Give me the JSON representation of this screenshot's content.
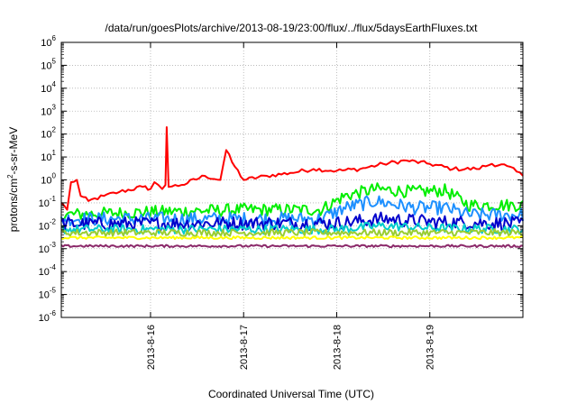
{
  "chart_data": {
    "type": "line",
    "title": "/data/run/goesPlots/archive/2013-08-19/23:00/flux/../flux/5daysEarthFluxes.txt",
    "xlabel": "Coordinated Universal Time (UTC)",
    "ylabel": "protons/cm2-s-sr-MeV",
    "ylabel_parts": [
      "protons/cm",
      "2",
      "-s-sr-MeV"
    ],
    "y_scale": "log",
    "ylim": [
      1e-06,
      1000000.0
    ],
    "y_ticks": [
      {
        "value": 1e-06,
        "base": "10",
        "exp": "-6"
      },
      {
        "value": 1e-05,
        "base": "10",
        "exp": "-5"
      },
      {
        "value": 0.0001,
        "base": "10",
        "exp": "-4"
      },
      {
        "value": 0.001,
        "base": "10",
        "exp": "-3"
      },
      {
        "value": 0.01,
        "base": "10",
        "exp": "-2"
      },
      {
        "value": 0.1,
        "base": "10",
        "exp": "-1"
      },
      {
        "value": 1,
        "base": "10",
        "exp": "0"
      },
      {
        "value": 10.0,
        "base": "10",
        "exp": "1"
      },
      {
        "value": 100.0,
        "base": "10",
        "exp": "2"
      },
      {
        "value": 1000.0,
        "base": "10",
        "exp": "3"
      },
      {
        "value": 10000.0,
        "base": "10",
        "exp": "4"
      },
      {
        "value": 100000.0,
        "base": "10",
        "exp": "5"
      },
      {
        "value": 1000000.0,
        "base": "10",
        "exp": "6"
      }
    ],
    "x_unit": "days",
    "xlim": [
      "2013-08-15T01:00",
      "2013-08-20T00:00"
    ],
    "x_ticks": [
      {
        "value": "2013-08-16",
        "label": "2013-8-16"
      },
      {
        "value": "2013-08-17",
        "label": "2013-8-17"
      },
      {
        "value": "2013-08-18",
        "label": "2013-8-18"
      },
      {
        "value": "2013-08-19",
        "label": "2013-8-19"
      }
    ],
    "grid": true,
    "legend": "none",
    "series": [
      {
        "color": "#ff0000",
        "kind": "anchors",
        "noise": 0.18,
        "points": [
          [
            "2013-08-15T01:00",
            0.1
          ],
          [
            "2013-08-15T02:30",
            0.05
          ],
          [
            "2013-08-15T03:30",
            0.8
          ],
          [
            "2013-08-15T05:00",
            1.0
          ],
          [
            "2013-08-15T06:00",
            0.2
          ],
          [
            "2013-08-15T08:00",
            0.12
          ],
          [
            "2013-08-15T12:00",
            0.2
          ],
          [
            "2013-08-15T16:00",
            0.3
          ],
          [
            "2013-08-15T22:00",
            0.5
          ],
          [
            "2013-08-16T00:00",
            0.4
          ],
          [
            "2013-08-16T01:00",
            0.8
          ],
          [
            "2013-08-16T02:00",
            0.6
          ],
          [
            "2013-08-16T03:00",
            0.4
          ],
          [
            "2013-08-16T03:50",
            0.6
          ],
          [
            "2013-08-16T04:10",
            200
          ],
          [
            "2013-08-16T04:40",
            0.5
          ],
          [
            "2013-08-16T08:00",
            0.6
          ],
          [
            "2013-08-16T14:00",
            1.5
          ],
          [
            "2013-08-16T18:00",
            1.0
          ],
          [
            "2013-08-16T19:30",
            20
          ],
          [
            "2013-08-16T21:00",
            6
          ],
          [
            "2013-08-17T00:00",
            1.0
          ],
          [
            "2013-08-17T06:00",
            1.5
          ],
          [
            "2013-08-17T12:00",
            2.0
          ],
          [
            "2013-08-17T18:00",
            3.0
          ],
          [
            "2013-08-18T00:00",
            2.5
          ],
          [
            "2013-08-18T06:00",
            3.0
          ],
          [
            "2013-08-18T12:00",
            5.0
          ],
          [
            "2013-08-18T18:00",
            7.0
          ],
          [
            "2013-08-19T00:00",
            5.0
          ],
          [
            "2013-08-19T06:00",
            3.0
          ],
          [
            "2013-08-19T12:00",
            3.0
          ],
          [
            "2013-08-19T16:00",
            5.0
          ],
          [
            "2013-08-19T20:00",
            4.0
          ],
          [
            "2013-08-20T00:00",
            1.5
          ]
        ]
      },
      {
        "color": "#00ee00",
        "kind": "noisy",
        "noise": 0.55,
        "points": [
          [
            "2013-08-15T01:00",
            0.03
          ],
          [
            "2013-08-16T00:00",
            0.04
          ],
          [
            "2013-08-17T00:00",
            0.05
          ],
          [
            "2013-08-17T20:00",
            0.05
          ],
          [
            "2013-08-18T02:00",
            0.2
          ],
          [
            "2013-08-18T10:00",
            0.4
          ],
          [
            "2013-08-18T20:00",
            0.3
          ],
          [
            "2013-08-19T04:00",
            0.35
          ],
          [
            "2013-08-19T10:00",
            0.08
          ],
          [
            "2013-08-20T00:00",
            0.08
          ]
        ]
      },
      {
        "color": "#1e90ff",
        "kind": "noisy",
        "noise": 0.6,
        "points": [
          [
            "2013-08-15T01:00",
            0.02
          ],
          [
            "2013-08-16T00:00",
            0.02
          ],
          [
            "2013-08-17T00:00",
            0.02
          ],
          [
            "2013-08-17T20:00",
            0.02
          ],
          [
            "2013-08-18T02:00",
            0.06
          ],
          [
            "2013-08-18T10:00",
            0.12
          ],
          [
            "2013-08-18T20:00",
            0.06
          ],
          [
            "2013-08-19T04:00",
            0.06
          ],
          [
            "2013-08-19T10:00",
            0.03
          ],
          [
            "2013-08-20T00:00",
            0.03
          ]
        ]
      },
      {
        "color": "#0000cc",
        "kind": "noisy",
        "noise": 0.6,
        "points": [
          [
            "2013-08-15T01:00",
            0.012
          ],
          [
            "2013-08-17T00:00",
            0.013
          ],
          [
            "2013-08-18T00:00",
            0.013
          ],
          [
            "2013-08-18T12:00",
            0.02
          ],
          [
            "2013-08-19T00:00",
            0.015
          ],
          [
            "2013-08-20T00:00",
            0.012
          ]
        ]
      },
      {
        "color": "#00cccc",
        "kind": "noisy",
        "noise": 0.4,
        "points": [
          [
            "2013-08-15T01:00",
            0.007
          ],
          [
            "2013-08-17T00:00",
            0.007
          ],
          [
            "2013-08-18T00:00",
            0.007
          ],
          [
            "2013-08-18T12:00",
            0.01
          ],
          [
            "2013-08-19T00:00",
            0.008
          ],
          [
            "2013-08-20T00:00",
            0.007
          ]
        ]
      },
      {
        "color": "#9acd32",
        "kind": "noisy",
        "noise": 0.3,
        "points": [
          [
            "2013-08-15T01:00",
            0.005
          ],
          [
            "2013-08-18T00:00",
            0.005
          ],
          [
            "2013-08-20T00:00",
            0.005
          ]
        ]
      },
      {
        "color": "#ffff00",
        "kind": "noisy",
        "noise": 0.12,
        "points": [
          [
            "2013-08-15T01:00",
            0.003
          ],
          [
            "2013-08-18T00:00",
            0.003
          ],
          [
            "2013-08-20T00:00",
            0.003
          ]
        ]
      },
      {
        "color": "#8b2a6a",
        "kind": "noisy",
        "noise": 0.1,
        "points": [
          [
            "2013-08-15T01:00",
            0.0013
          ],
          [
            "2013-08-18T00:00",
            0.0013
          ],
          [
            "2013-08-20T00:00",
            0.0013
          ]
        ]
      }
    ]
  }
}
